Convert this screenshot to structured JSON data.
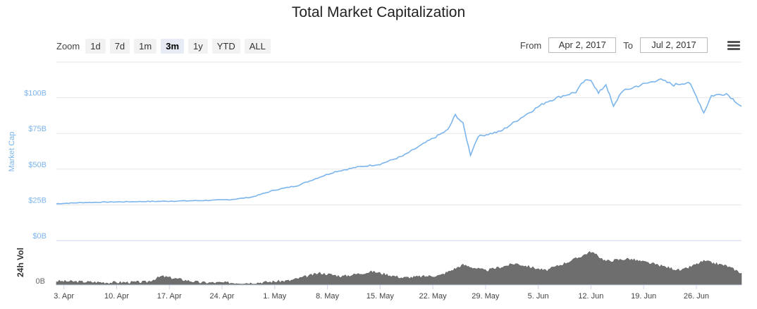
{
  "title": "Total Market Capitalization",
  "zoom": {
    "label": "Zoom",
    "buttons": [
      "1d",
      "7d",
      "1m",
      "3m",
      "1y",
      "YTD",
      "ALL"
    ],
    "active": "3m"
  },
  "range": {
    "from_label": "From",
    "from_value": "Apr 2, 2017",
    "to_label": "To",
    "to_value": "Jul 2, 2017"
  },
  "colors": {
    "line": "#7cb5ec",
    "volume": "#6e6e6e",
    "axis_text": "#7cb5ec"
  },
  "chart_data": [
    {
      "type": "line",
      "title": "Total Market Capitalization",
      "ylabel": "Market Cap",
      "yticks": [
        "$0B",
        "$25B",
        "$50B",
        "$75B",
        "$100B"
      ],
      "ylim": [
        0,
        125
      ],
      "xticks": [
        "3. Apr",
        "10. Apr",
        "17. Apr",
        "24. Apr",
        "1. May",
        "8. May",
        "15. May",
        "22. May",
        "29. May",
        "5. Jun",
        "12. Jun",
        "19. Jun",
        "26. Jun"
      ],
      "x": [
        "2017-04-02",
        "2017-04-05",
        "2017-04-09",
        "2017-04-13",
        "2017-04-17",
        "2017-04-21",
        "2017-04-25",
        "2017-04-28",
        "2017-05-01",
        "2017-05-04",
        "2017-05-07",
        "2017-05-09",
        "2017-05-12",
        "2017-05-15",
        "2017-05-18",
        "2017-05-21",
        "2017-05-24",
        "2017-05-25",
        "2017-05-26",
        "2017-05-27",
        "2017-05-28",
        "2017-05-31",
        "2017-06-03",
        "2017-06-06",
        "2017-06-08",
        "2017-06-10",
        "2017-06-11",
        "2017-06-12",
        "2017-06-13",
        "2017-06-14",
        "2017-06-15",
        "2017-06-16",
        "2017-06-18",
        "2017-06-20",
        "2017-06-21",
        "2017-06-23",
        "2017-06-25",
        "2017-06-26",
        "2017-06-27",
        "2017-06-28",
        "2017-06-30",
        "2017-07-02"
      ],
      "y": [
        25.8,
        26.5,
        27.0,
        27.3,
        27.6,
        28.0,
        28.6,
        30.5,
        35.4,
        38.5,
        44.5,
        48.2,
        51.5,
        53.5,
        59.2,
        68.5,
        77.5,
        88.0,
        82.0,
        60.0,
        73.0,
        76.5,
        87.0,
        97.0,
        101.0,
        104.0,
        111.0,
        113.0,
        103.0,
        109.5,
        93.5,
        104.0,
        108.0,
        111.0,
        113.0,
        109.0,
        111.0,
        101.0,
        89.5,
        101.5,
        103.0,
        94.0
      ]
    },
    {
      "type": "area",
      "ylabel": "24h Vol",
      "yticks": [
        "0B"
      ],
      "x": [
        "2017-04-02",
        "2017-04-09",
        "2017-04-14",
        "2017-04-16",
        "2017-04-21",
        "2017-04-28",
        "2017-05-03",
        "2017-05-07",
        "2017-05-10",
        "2017-05-14",
        "2017-05-18",
        "2017-05-23",
        "2017-05-26",
        "2017-05-29",
        "2017-06-02",
        "2017-06-06",
        "2017-06-10",
        "2017-06-12",
        "2017-06-14",
        "2017-06-17",
        "2017-06-20",
        "2017-06-24",
        "2017-06-27",
        "2017-06-30",
        "2017-07-02"
      ],
      "y": [
        0.8,
        0.5,
        0.6,
        1.8,
        0.5,
        0.4,
        0.9,
        2.5,
        1.8,
        2.8,
        1.5,
        2.0,
        4.2,
        3.0,
        4.5,
        3.0,
        5.5,
        7.0,
        5.0,
        5.5,
        4.5,
        3.0,
        5.0,
        4.0,
        2.5
      ]
    }
  ]
}
